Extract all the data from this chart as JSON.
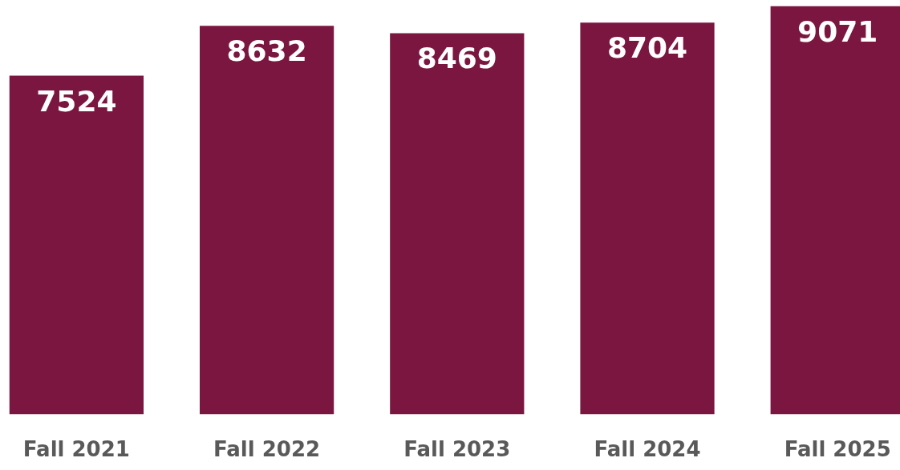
{
  "chart_data": {
    "type": "bar",
    "categories": [
      "Fall 2021",
      "Fall 2022",
      "Fall 2023",
      "Fall 2024",
      "Fall 2025"
    ],
    "values": [
      7524,
      8632,
      8469,
      8704,
      9071
    ],
    "color": "#7b1640",
    "data_labels": true
  }
}
